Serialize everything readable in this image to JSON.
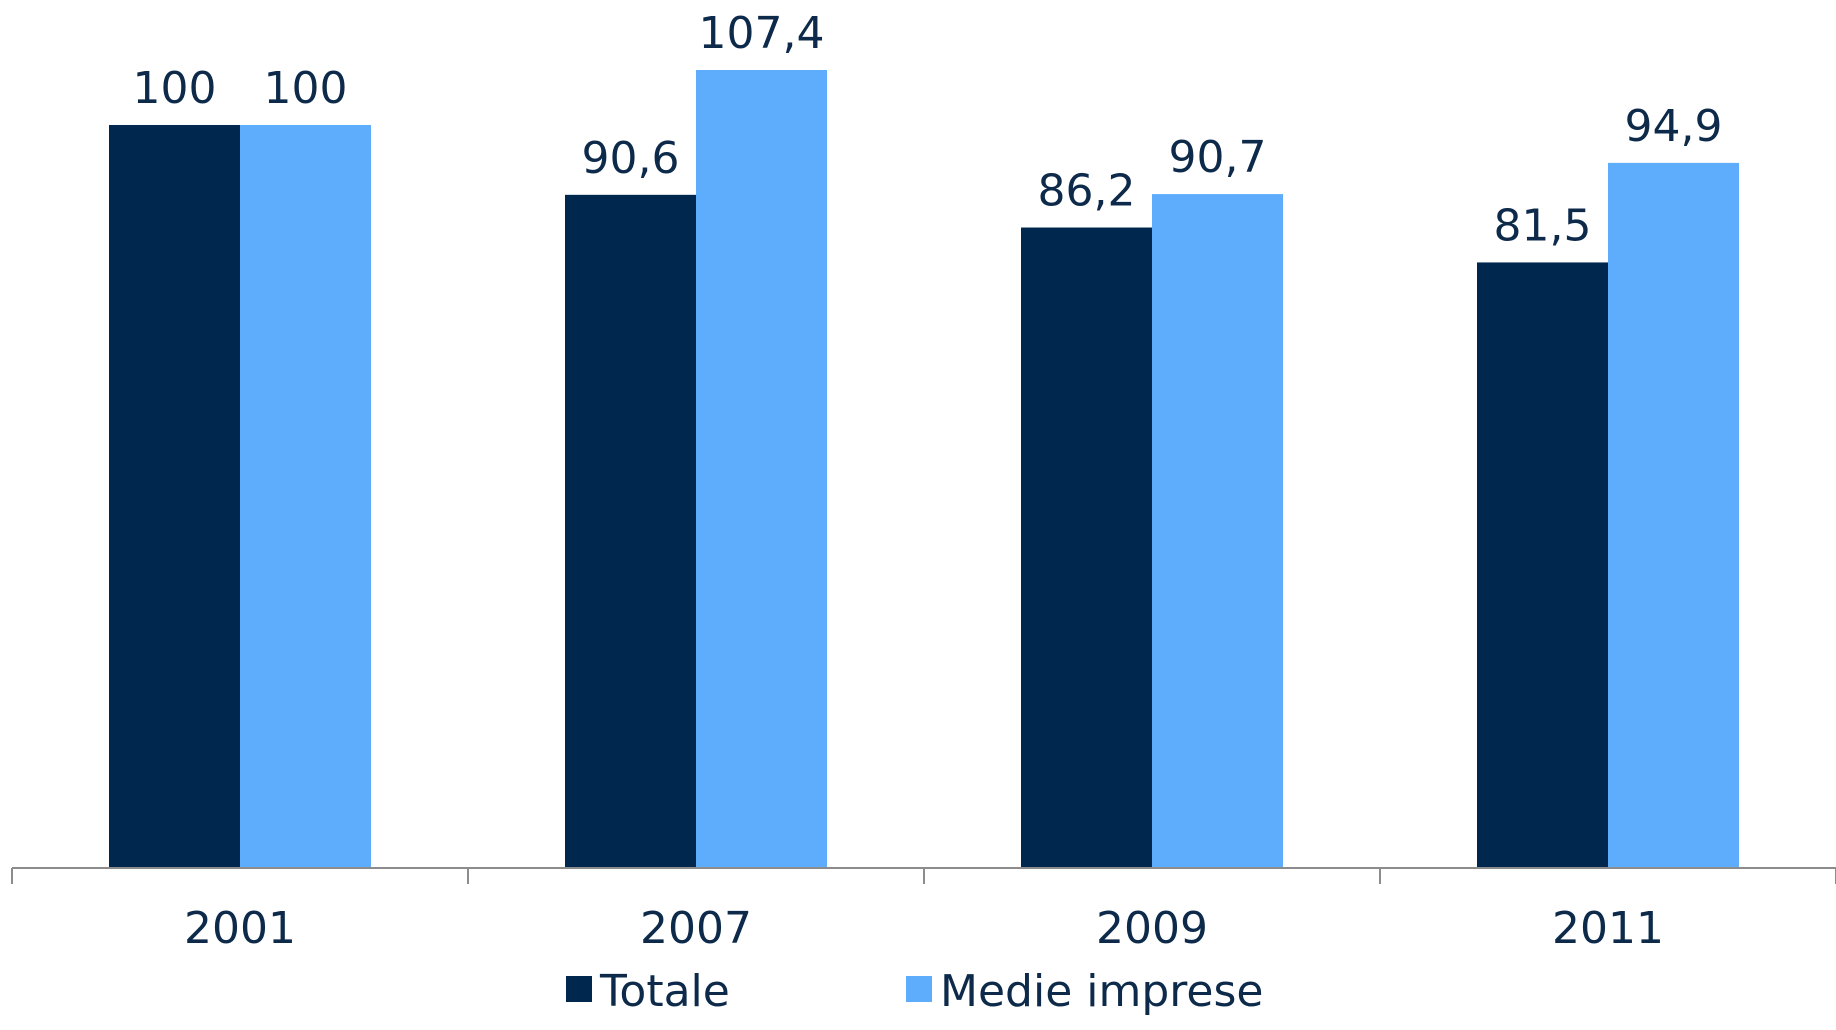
{
  "chart_data": {
    "type": "bar",
    "categories": [
      "2001",
      "2007",
      "2009",
      "2011"
    ],
    "series": [
      {
        "name": "Totale",
        "values": [
          100,
          90.6,
          86.2,
          81.5
        ],
        "labels": [
          "100",
          "90,6",
          "86,2",
          "81,5"
        ],
        "color": "#00274d"
      },
      {
        "name": "Medie imprese",
        "values": [
          100,
          107.4,
          90.7,
          94.9
        ],
        "labels": [
          "100",
          "107,4",
          "90,7",
          "94,9"
        ],
        "color": "#5eadfd"
      }
    ],
    "ylim": [
      0,
      107.4
    ],
    "grid": false,
    "legend_position": "bottom",
    "axis_color": "#8c8c8c",
    "text_color": "#0d2a4a"
  }
}
